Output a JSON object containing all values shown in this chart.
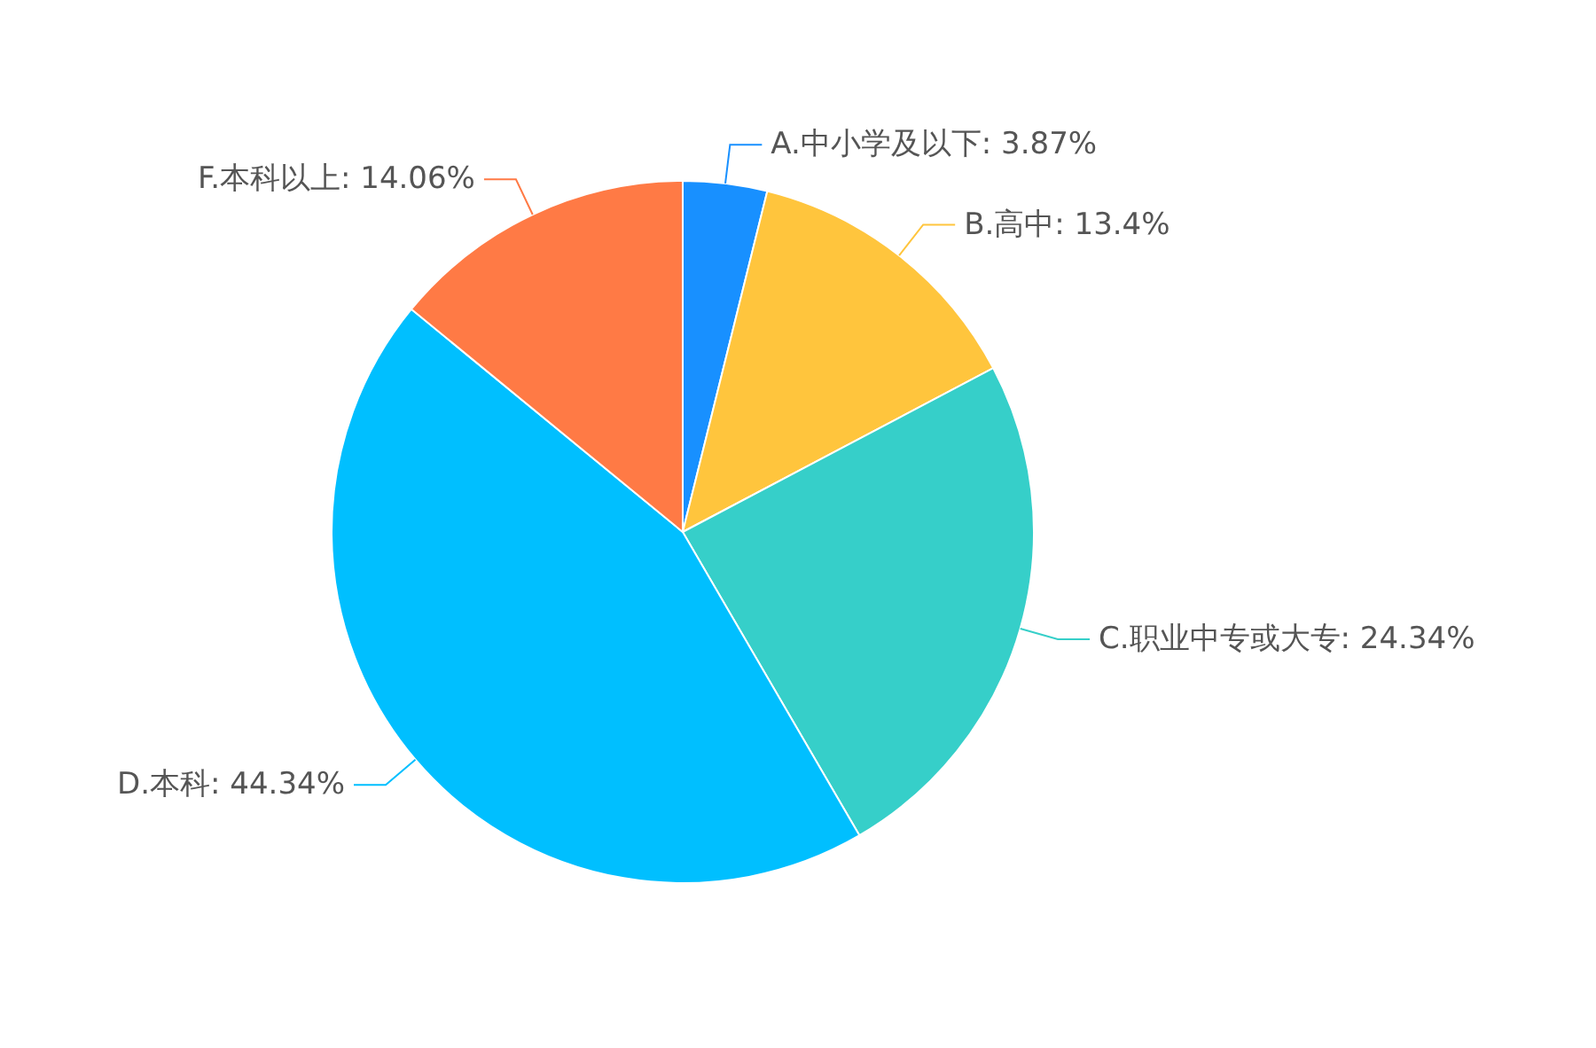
{
  "chart_data": {
    "type": "pie",
    "categories": [
      "A.中小学及以下",
      "B.高中",
      "C.职业中专或大专",
      "D.本科",
      "F.本科以上"
    ],
    "values": [
      3.87,
      13.4,
      24.34,
      44.34,
      14.06
    ],
    "value_labels": [
      "3.87%",
      "13.4%",
      "24.34%",
      "44.34%",
      "14.06%"
    ],
    "colors": [
      "#1890ff",
      "#ffc53d",
      "#36cfc9",
      "#00bfff",
      "#ff7a45"
    ]
  }
}
